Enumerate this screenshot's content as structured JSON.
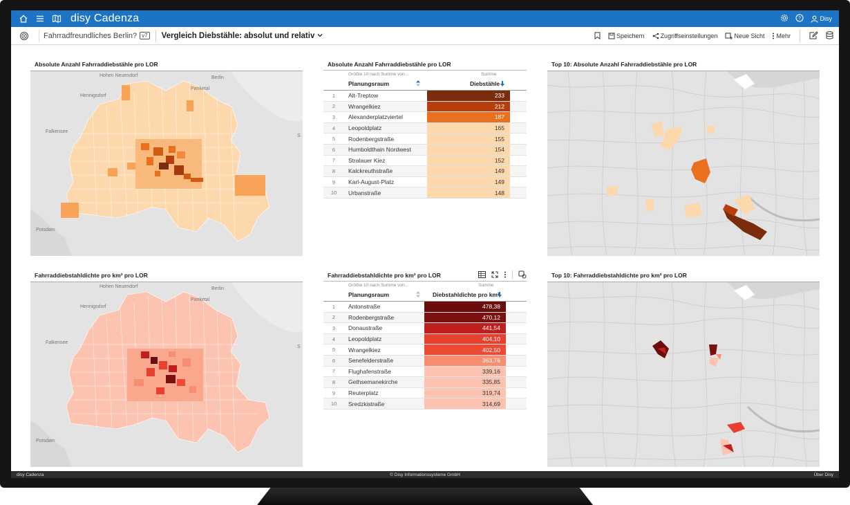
{
  "titlebar": {
    "app_name": "disy Cadenza",
    "user_name": "Disy"
  },
  "toolbar": {
    "project": "Fahrradfreundliches Berlin?",
    "version": "v7",
    "view_title": "Vergleich Diebstähle: absolut und relativ",
    "save": "Speichern",
    "access": "Zugriffseinstellungen",
    "new_view": "Neue Sicht",
    "more": "Mehr"
  },
  "panels": {
    "map1_title": "Absolute Anzahl Fahrraddiebstähle pro LOR",
    "table1_title": "Absolute Anzahl Fahrraddiebstähle pro LOR",
    "top1_title": "Top 10: Absolute Anzahl Fahrraddiebstähle pro LOR",
    "map2_title": "Fahrraddiebstahldichte pro km² pro LOR",
    "table2_title": "Fahrraddiebstahldichte pro km² pro LOR",
    "top2_title": "Top 10: Fahrraddiebstahldichte pro km² pro LOR"
  },
  "map_labels": {
    "hohen_neuendorf": "Hohen Neuendorf",
    "berlin": "Berlin",
    "hennigsdorf": "Hennigsdorf",
    "panketal": "Panketal",
    "falkensee": "Falkensee",
    "potsdam": "Potsdam",
    "s": "S"
  },
  "table1": {
    "sub_left": "Größte 10 nach Summe von...",
    "sub_right": "Summe",
    "col1": "Planungsraum",
    "col2": "Diebstähle",
    "rows": [
      {
        "idx": "1",
        "name": "Alt-Treptow",
        "val": "233",
        "bg": "#7a2c0c",
        "fg": "#fff"
      },
      {
        "idx": "2",
        "name": "Wrangelkiez",
        "val": "212",
        "bg": "#b53e0f",
        "fg": "#fff"
      },
      {
        "idx": "3",
        "name": "Alexanderplatzviertel",
        "val": "187",
        "bg": "#e8701f",
        "fg": "#fff"
      },
      {
        "idx": "4",
        "name": "Leopoldplatz",
        "val": "165",
        "bg": "#fdd8ad",
        "fg": "#333"
      },
      {
        "idx": "5",
        "name": "Rodenbergstraße",
        "val": "155",
        "bg": "#fdd8ad",
        "fg": "#333"
      },
      {
        "idx": "6",
        "name": "Humboldthain Nordwest",
        "val": "154",
        "bg": "#fdd8ad",
        "fg": "#333"
      },
      {
        "idx": "7",
        "name": "Stralauer Kiez",
        "val": "152",
        "bg": "#fdd8ad",
        "fg": "#333"
      },
      {
        "idx": "8",
        "name": "Kalckreuthstraße",
        "val": "149",
        "bg": "#fdd8ad",
        "fg": "#333"
      },
      {
        "idx": "9",
        "name": "Karl-August-Platz",
        "val": "149",
        "bg": "#fdd8ad",
        "fg": "#333"
      },
      {
        "idx": "10",
        "name": "Urbanstraße",
        "val": "148",
        "bg": "#fdd8ad",
        "fg": "#333"
      }
    ]
  },
  "table2": {
    "sub_left": "Größte 10 nach Summe von...",
    "sub_right": "Summe",
    "col1": "Planungsraum",
    "col2": "Diebstahldichte pro km²",
    "rows": [
      {
        "idx": "1",
        "name": "Antonstraße",
        "val": "478,38",
        "bg": "#6b0d0d",
        "fg": "#fff"
      },
      {
        "idx": "2",
        "name": "Rodenbergstraße",
        "val": "470,12",
        "bg": "#7b1010",
        "fg": "#fff"
      },
      {
        "idx": "3",
        "name": "Donaustraße",
        "val": "441,54",
        "bg": "#c01f1f",
        "fg": "#fff"
      },
      {
        "idx": "4",
        "name": "Leopoldplatz",
        "val": "404,10",
        "bg": "#e8402f",
        "fg": "#fff"
      },
      {
        "idx": "5",
        "name": "Wrangelkiez",
        "val": "402,50",
        "bg": "#ec4a35",
        "fg": "#fff"
      },
      {
        "idx": "6",
        "name": "Senefelderstraße",
        "val": "363,76",
        "bg": "#f78e72",
        "fg": "#fff"
      },
      {
        "idx": "7",
        "name": "Flughafenstraße",
        "val": "339,16",
        "bg": "#fcc4b0",
        "fg": "#333"
      },
      {
        "idx": "8",
        "name": "Gethsemanekirche",
        "val": "335,85",
        "bg": "#fcc4b0",
        "fg": "#333"
      },
      {
        "idx": "9",
        "name": "Reuterplatz",
        "val": "319,74",
        "bg": "#fcc4b0",
        "fg": "#333"
      },
      {
        "idx": "10",
        "name": "Sredzkistraße",
        "val": "314,69",
        "bg": "#fcc4b0",
        "fg": "#333"
      }
    ]
  },
  "footer": {
    "left": "disy Cadenza",
    "center": "© Disy Informationssysteme GmbH",
    "right": "Über Disy"
  }
}
